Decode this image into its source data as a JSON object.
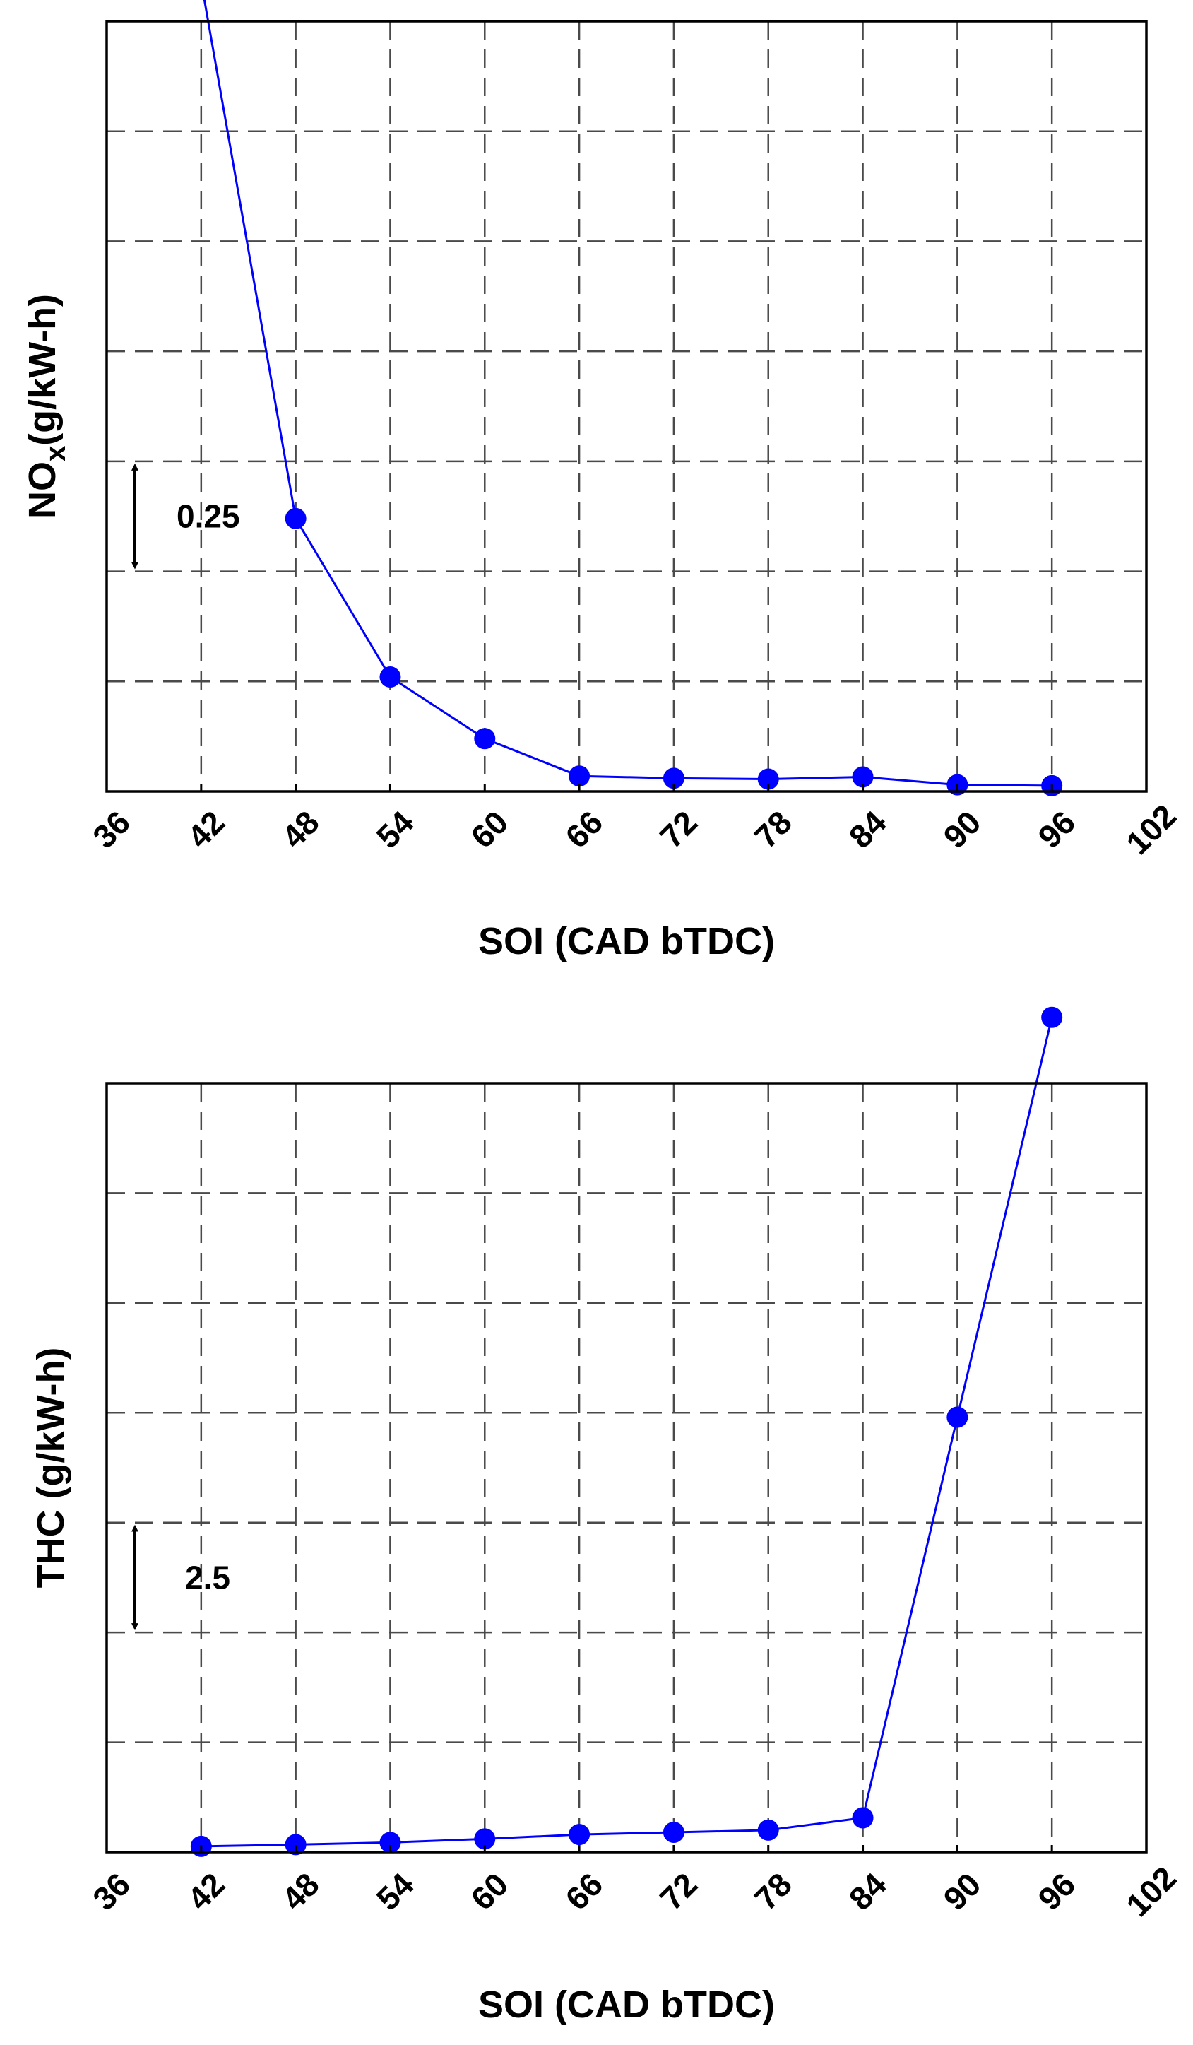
{
  "chart_data": [
    {
      "type": "line",
      "xlabel": "SOI (CAD bTDC)",
      "ylabel": "NOx(g/kW-h)",
      "ylabel_main": "NO",
      "ylabel_sub": "x",
      "ylabel_rest": "(g/kW-h)",
      "xlim": [
        36,
        102
      ],
      "xticks": [
        "36",
        "42",
        "48",
        "54",
        "60",
        "66",
        "72",
        "78",
        "84",
        "90",
        "96",
        "102"
      ],
      "ylim": [
        0,
        1.75
      ],
      "y_grid_step": 0.25,
      "y_tick_labels_shown": false,
      "grid": true,
      "annotation": {
        "text": "0.25",
        "arrow": "double-headed vertical, spans one grid interval"
      },
      "color": "#0000ff",
      "series": [
        {
          "x": [
            42,
            48,
            54,
            60,
            66,
            72,
            78,
            84,
            90,
            96
          ],
          "y": [
            1.84,
            0.62,
            0.26,
            0.12,
            0.035,
            0.03,
            0.028,
            0.033,
            0.015,
            0.013
          ]
        }
      ]
    },
    {
      "type": "line",
      "xlabel": "SOI (CAD bTDC)",
      "ylabel": "THC (g/kW-h)",
      "ylabel_main": "THC (g/kW-h)",
      "ylabel_sub": "",
      "ylabel_rest": "",
      "xlim": [
        36,
        102
      ],
      "xticks": [
        "36",
        "42",
        "48",
        "54",
        "60",
        "66",
        "72",
        "78",
        "84",
        "90",
        "96",
        "102"
      ],
      "ylim": [
        0,
        17.5
      ],
      "y_grid_step": 2.5,
      "y_tick_labels_shown": false,
      "grid": true,
      "annotation": {
        "text": "2.5",
        "arrow": "double-headed vertical, spans one grid interval"
      },
      "color": "#0000ff",
      "series": [
        {
          "x": [
            42,
            48,
            54,
            60,
            66,
            72,
            78,
            84,
            90,
            96
          ],
          "y": [
            0.13,
            0.17,
            0.22,
            0.3,
            0.4,
            0.45,
            0.5,
            0.78,
            9.9,
            19.0
          ]
        }
      ]
    }
  ]
}
